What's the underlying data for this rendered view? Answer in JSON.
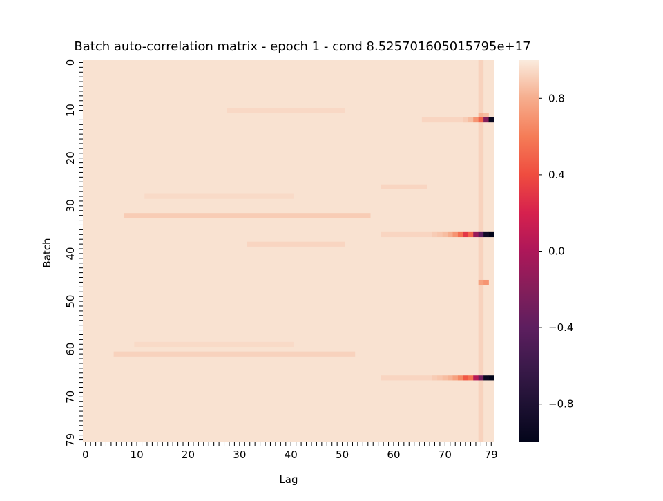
{
  "chart_data": {
    "type": "heatmap",
    "title": "Batch auto-correlation matrix - epoch 1 - cond 8.525701605015795e+17",
    "xlabel": "Lag",
    "ylabel": "Batch",
    "n_rows": 80,
    "n_cols": 80,
    "xlim": [
      0,
      79
    ],
    "ylim": [
      0,
      79
    ],
    "x_tick_labels": [
      "0",
      "10",
      "20",
      "30",
      "40",
      "50",
      "60",
      "70",
      "79"
    ],
    "y_tick_labels": [
      "0",
      "10",
      "20",
      "30",
      "40",
      "50",
      "60",
      "70",
      "79"
    ],
    "colorbar": {
      "min": -1.0,
      "max": 1.0,
      "colormap": "rocket",
      "tick_values": [
        0.8,
        0.4,
        0.0,
        -0.4,
        -0.8
      ],
      "tick_labels": [
        "0.8",
        "0.4",
        "0.0",
        "−0.4",
        "−0.8"
      ]
    },
    "base_value": 0.97,
    "notable_cells": [
      {
        "batch": 11,
        "lag": 77,
        "value": 0.82
      },
      {
        "batch": 11,
        "lag": 78,
        "value": 0.85
      },
      {
        "batch": 12,
        "lag": 74,
        "value": 0.9
      },
      {
        "batch": 12,
        "lag": 75,
        "value": 0.85
      },
      {
        "batch": 12,
        "lag": 76,
        "value": 0.7
      },
      {
        "batch": 12,
        "lag": 77,
        "value": 0.5
      },
      {
        "batch": 12,
        "lag": 78,
        "value": -0.2
      },
      {
        "batch": 12,
        "lag": 79,
        "value": -0.95
      },
      {
        "batch": 36,
        "lag": 68,
        "value": 0.9
      },
      {
        "batch": 36,
        "lag": 69,
        "value": 0.88
      },
      {
        "batch": 36,
        "lag": 70,
        "value": 0.85
      },
      {
        "batch": 36,
        "lag": 71,
        "value": 0.8
      },
      {
        "batch": 36,
        "lag": 72,
        "value": 0.7
      },
      {
        "batch": 36,
        "lag": 73,
        "value": 0.55
      },
      {
        "batch": 36,
        "lag": 74,
        "value": 0.3
      },
      {
        "batch": 36,
        "lag": 75,
        "value": 0.5
      },
      {
        "batch": 36,
        "lag": 76,
        "value": -0.1
      },
      {
        "batch": 36,
        "lag": 77,
        "value": -0.4
      },
      {
        "batch": 36,
        "lag": 78,
        "value": -0.9
      },
      {
        "batch": 36,
        "lag": 79,
        "value": -1.0
      },
      {
        "batch": 46,
        "lag": 77,
        "value": 0.75
      },
      {
        "batch": 46,
        "lag": 78,
        "value": 0.7
      },
      {
        "batch": 66,
        "lag": 68,
        "value": 0.9
      },
      {
        "batch": 66,
        "lag": 69,
        "value": 0.88
      },
      {
        "batch": 66,
        "lag": 70,
        "value": 0.85
      },
      {
        "batch": 66,
        "lag": 71,
        "value": 0.82
      },
      {
        "batch": 66,
        "lag": 72,
        "value": 0.75
      },
      {
        "batch": 66,
        "lag": 73,
        "value": 0.65
      },
      {
        "batch": 66,
        "lag": 74,
        "value": 0.45
      },
      {
        "batch": 66,
        "lag": 75,
        "value": 0.55
      },
      {
        "batch": 66,
        "lag": 76,
        "value": 0.05
      },
      {
        "batch": 66,
        "lag": 77,
        "value": -0.3
      },
      {
        "batch": 66,
        "lag": 78,
        "value": -0.95
      },
      {
        "batch": 66,
        "lag": 79,
        "value": -1.0
      }
    ],
    "faint_bands": [
      {
        "batch": 32,
        "lag_from": 8,
        "lag_to": 55,
        "value": 0.9
      },
      {
        "batch": 61,
        "lag_from": 6,
        "lag_to": 52,
        "value": 0.92
      },
      {
        "batch": 10,
        "lag_from": 28,
        "lag_to": 50,
        "value": 0.94
      },
      {
        "batch": 38,
        "lag_from": 32,
        "lag_to": 50,
        "value": 0.93
      },
      {
        "batch": 26,
        "lag_from": 58,
        "lag_to": 66,
        "value": 0.93
      },
      {
        "batch": 36,
        "lag_from": 58,
        "lag_to": 68,
        "value": 0.93
      },
      {
        "batch": 66,
        "lag_from": 58,
        "lag_to": 68,
        "value": 0.93
      },
      {
        "batch": 12,
        "lag_from": 66,
        "lag_to": 74,
        "value": 0.93
      },
      {
        "batch": 28,
        "lag_from": 12,
        "lag_to": 40,
        "value": 0.945
      },
      {
        "batch": 59,
        "lag_from": 10,
        "lag_to": 40,
        "value": 0.945
      }
    ],
    "column_stripe": {
      "lag": 77,
      "value": 0.92
    }
  }
}
